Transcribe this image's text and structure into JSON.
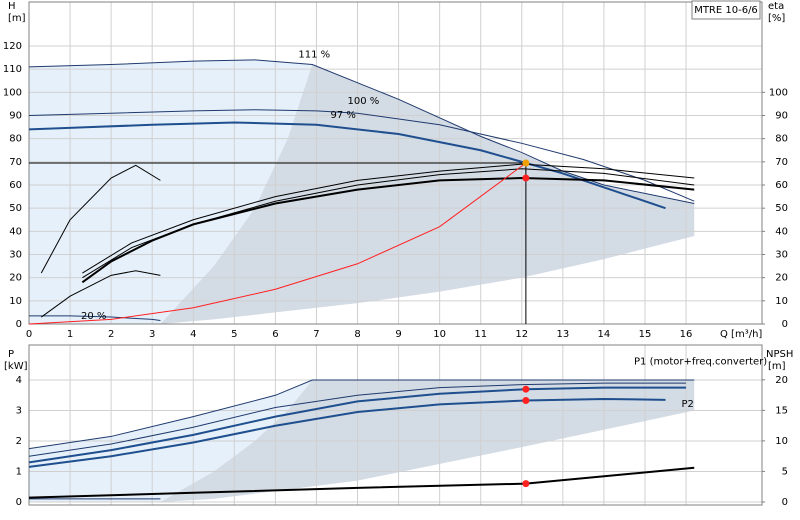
{
  "chart_data": [
    {
      "type": "line",
      "title": "MTRE 10-6/6",
      "ylabel": "H",
      "yunit": "[m]",
      "y2label": "eta",
      "y2unit": "[%]",
      "xlabel": "Q [m³/h]",
      "xlim": [
        0,
        17.85
      ],
      "xticks": [
        0,
        1,
        2,
        3,
        4,
        5,
        6,
        7,
        8,
        9,
        10,
        11,
        12,
        13,
        14,
        15,
        16
      ],
      "xtick_labels": true,
      "ylim": [
        0,
        139
      ],
      "yticks": [
        0,
        10,
        20,
        30,
        40,
        50,
        60,
        70,
        80,
        90,
        100,
        110,
        120
      ],
      "y2lim": [
        0,
        139
      ],
      "y2ticks": [
        0,
        10,
        20,
        30,
        40,
        50,
        60,
        70,
        80,
        90,
        100
      ],
      "grid": true,
      "areas": [
        {
          "color": "#e6f0fa",
          "x": [
            0,
            0,
            2,
            4,
            5.5,
            6.9,
            6.3,
            5.5,
            4.5,
            3.2
          ],
          "y": [
            0,
            111,
            112,
            113.5,
            114,
            112,
            80,
            50,
            25,
            0
          ]
        },
        {
          "color": "#d3dbe5",
          "x": [
            3.2,
            4.5,
            5.5,
            6.3,
            6.9,
            9,
            11,
            13,
            14,
            16.2,
            16.2,
            14,
            12,
            10,
            8,
            6,
            4.5
          ],
          "y": [
            0,
            25,
            50,
            80,
            112,
            97,
            81,
            66,
            60,
            52,
            38,
            28,
            20,
            14,
            9,
            5,
            2
          ]
        }
      ],
      "series": [
        {
          "name": "111 %",
          "color": "#1f3a6e",
          "width": 1,
          "x": [
            0,
            2,
            4,
            5.5,
            6.9,
            9,
            11,
            12,
            13,
            14,
            16.2
          ],
          "values": [
            111,
            112,
            113.5,
            114,
            112,
            97,
            81,
            74,
            66,
            60,
            52
          ]
        },
        {
          "name": "100 %",
          "color": "#1f3a6e",
          "width": 1,
          "x": [
            0,
            2,
            4,
            5.5,
            7,
            8,
            10,
            12,
            13.5,
            15,
            16.2
          ],
          "values": [
            90,
            91,
            92,
            92.5,
            92,
            91,
            86,
            78,
            71,
            62,
            53
          ]
        },
        {
          "name": "97 %",
          "color": "#1f4f8e",
          "width": 2,
          "x": [
            0,
            3,
            5,
            7,
            9,
            11,
            12.1,
            13,
            14.5,
            15.5
          ],
          "values": [
            84,
            86,
            87,
            86,
            82,
            75,
            69.5,
            65,
            56,
            50
          ]
        },
        {
          "name": "20 %",
          "color": "#1f3a6e",
          "width": 1,
          "x": [
            0,
            1,
            2,
            3,
            3.2
          ],
          "values": [
            3.5,
            3.5,
            3,
            2,
            1.5
          ]
        },
        {
          "color": "#000000",
          "width": 1,
          "axis": "y2",
          "x": [
            1.3,
            2.5,
            4,
            6,
            8,
            10,
            12,
            14,
            16.2
          ],
          "values": [
            22,
            35,
            45,
            55,
            62,
            66,
            69,
            67,
            63
          ]
        },
        {
          "color": "#000000",
          "width": 1,
          "axis": "y2",
          "x": [
            1.3,
            2.5,
            4,
            6,
            8,
            10,
            12,
            14,
            16.2
          ],
          "values": [
            20,
            33,
            43,
            53,
            60,
            64.5,
            67,
            65,
            60
          ]
        },
        {
          "color": "#000000",
          "width": 2,
          "axis": "y2",
          "x": [
            1.3,
            2,
            3,
            4,
            6,
            8,
            10,
            12,
            14,
            16.2
          ],
          "values": [
            18,
            27,
            36,
            43,
            52,
            58,
            62,
            63,
            62,
            58
          ]
        },
        {
          "color": "#000000",
          "width": 1,
          "axis": "y2",
          "x": [
            0.3,
            1,
            2,
            2.6,
            3.2
          ],
          "values": [
            22,
            45,
            63,
            68.5,
            62
          ]
        },
        {
          "color": "#000000",
          "width": 1,
          "axis": "y2",
          "x": [
            0.3,
            1,
            2,
            2.6,
            3.2
          ],
          "values": [
            3,
            12,
            21,
            23,
            21
          ]
        },
        {
          "color": "#ff2020",
          "width": 1,
          "x": [
            0,
            2,
            4,
            6,
            8,
            10,
            12.1
          ],
          "values": [
            0,
            2,
            7,
            15,
            26,
            42,
            69.5
          ]
        }
      ],
      "points": [
        {
          "color": "#f0a000",
          "x": 12.1,
          "y": 69.5
        },
        {
          "color": "#ff2020",
          "x": 12.1,
          "y": 63
        }
      ]
    },
    {
      "type": "line",
      "ylabel": "P",
      "yunit": "[kW]",
      "y2label": "NPSH",
      "y2unit": "[m]",
      "xlim": [
        0,
        17.85
      ],
      "xticks": [
        0,
        1,
        2,
        3,
        4,
        5,
        6,
        7,
        8,
        9,
        10,
        11,
        12,
        13,
        14,
        15,
        16
      ],
      "xtick_labels": false,
      "ylim": [
        -0.1,
        5.15
      ],
      "yticks": [
        0,
        1,
        2,
        3,
        4
      ],
      "y2lim": [
        -0.5,
        25.7
      ],
      "y2ticks": [
        0,
        5,
        10,
        15,
        20
      ],
      "grid": true,
      "areas": [
        {
          "color": "#e6f0fa",
          "x": [
            0,
            0,
            2,
            4,
            6,
            6.9,
            6.3,
            5.5,
            4.5,
            3.2
          ],
          "y": [
            0,
            1.75,
            2.15,
            2.8,
            3.5,
            4,
            3,
            2,
            1,
            0
          ]
        },
        {
          "color": "#d3dbe5",
          "x": [
            3.2,
            4.5,
            5.5,
            6.3,
            6.9,
            16.2,
            16.2,
            12,
            8,
            4.5
          ],
          "y": [
            0,
            1,
            2,
            3,
            4,
            4,
            3,
            1.8,
            0.7,
            0.1
          ]
        }
      ],
      "series": [
        {
          "color": "#1f3a6e",
          "width": 1,
          "x": [
            0,
            2,
            4,
            6,
            6.9,
            16.2
          ],
          "values": [
            1.75,
            2.15,
            2.8,
            3.5,
            4,
            4
          ]
        },
        {
          "name": "P1 (motor+freq.converter)",
          "color": "#1f4f8e",
          "width": 2,
          "x": [
            0,
            2,
            4,
            6,
            8,
            10,
            12.1,
            14,
            16
          ],
          "values": [
            1.3,
            1.7,
            2.2,
            2.8,
            3.3,
            3.55,
            3.7,
            3.75,
            3.75
          ]
        },
        {
          "color": "#1f3a6e",
          "width": 1,
          "x": [
            0,
            2,
            4,
            6,
            8,
            10,
            12,
            14,
            16
          ],
          "values": [
            1.5,
            1.9,
            2.45,
            3.1,
            3.5,
            3.75,
            3.85,
            3.9,
            3.9
          ]
        },
        {
          "name": "P2",
          "color": "#1f4f8e",
          "width": 2,
          "x": [
            0,
            2,
            4,
            6,
            8,
            10,
            12.1,
            14,
            15.5
          ],
          "values": [
            1.15,
            1.5,
            1.95,
            2.5,
            2.95,
            3.2,
            3.33,
            3.38,
            3.35
          ]
        },
        {
          "color": "#1f3a6e",
          "width": 1,
          "x": [
            0,
            3.2
          ],
          "values": [
            0.1,
            0.1
          ]
        },
        {
          "color": "#000000",
          "width": 2,
          "axis": "y2",
          "x": [
            0,
            4,
            8,
            12.1,
            16.2
          ],
          "values": [
            0.7,
            1.5,
            2.3,
            3,
            5.6
          ]
        }
      ],
      "points": [
        {
          "color": "#ff2020",
          "x": 12.1,
          "y": 3.7
        },
        {
          "color": "#ff2020",
          "x": 12.1,
          "y": 3.33
        },
        {
          "color": "#ff2020",
          "x": 12.1,
          "y": 3,
          "axis": "y2"
        }
      ]
    }
  ]
}
